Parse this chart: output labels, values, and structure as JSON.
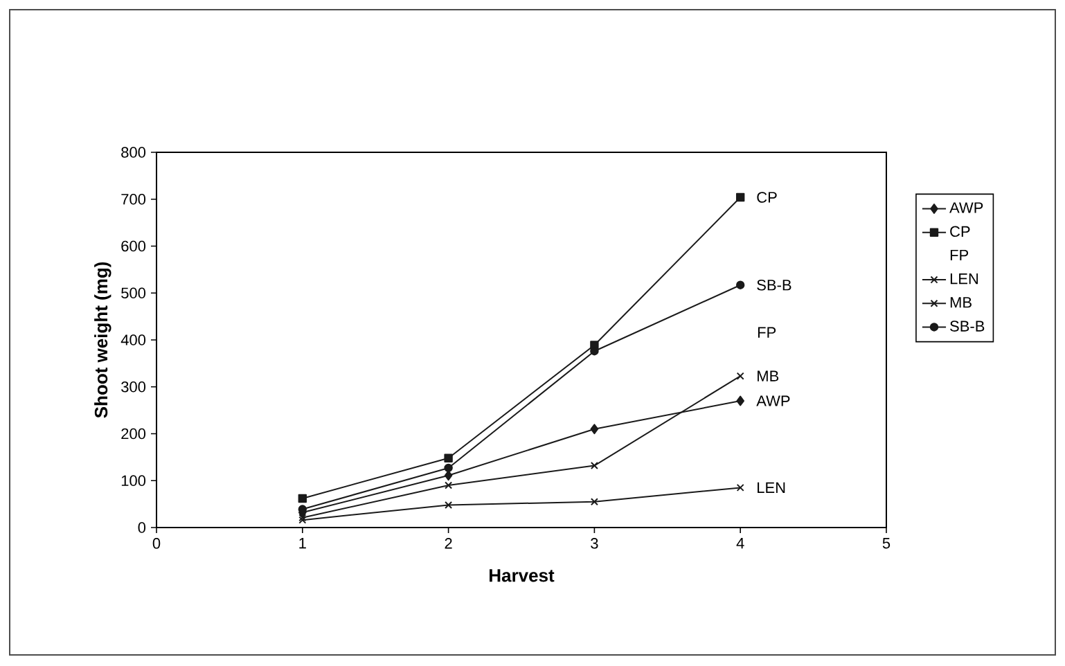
{
  "chart_data": {
    "type": "line",
    "xlabel": "Harvest",
    "ylabel": "Shoot weight (mg)",
    "x": [
      1,
      2,
      3,
      4
    ],
    "series": [
      {
        "name": "AWP",
        "color": "#1a1a1a",
        "marker": "diamond",
        "values": [
          32,
          111,
          210,
          270
        ]
      },
      {
        "name": "CP",
        "color": "#1a1a1a",
        "marker": "square",
        "values": [
          62,
          148,
          389,
          704
        ]
      },
      {
        "name": "FP",
        "color": "#1a1a1a",
        "values": [
          null,
          null,
          null,
          null
        ]
      },
      {
        "name": "LEN",
        "color": "#1a1a1a",
        "marker": "cross",
        "values": [
          16,
          48,
          55,
          85
        ]
      },
      {
        "name": "MB",
        "color": "#1a1a1a",
        "marker": "cross",
        "values": [
          21,
          90,
          132,
          323
        ]
      },
      {
        "name": "SB-B",
        "color": "#1a1a1a",
        "marker": "circle",
        "values": [
          39,
          127,
          376,
          517
        ]
      }
    ],
    "annotations": [
      "FP"
    ],
    "xlim": [
      0,
      5
    ],
    "xticks": [
      0,
      1,
      2,
      3,
      4,
      5
    ],
    "ylim": [
      0,
      800
    ],
    "yticks": [
      0,
      100,
      200,
      300,
      400,
      500,
      600,
      700,
      800
    ],
    "grid": false,
    "legend": "right",
    "line_style": "solid"
  }
}
